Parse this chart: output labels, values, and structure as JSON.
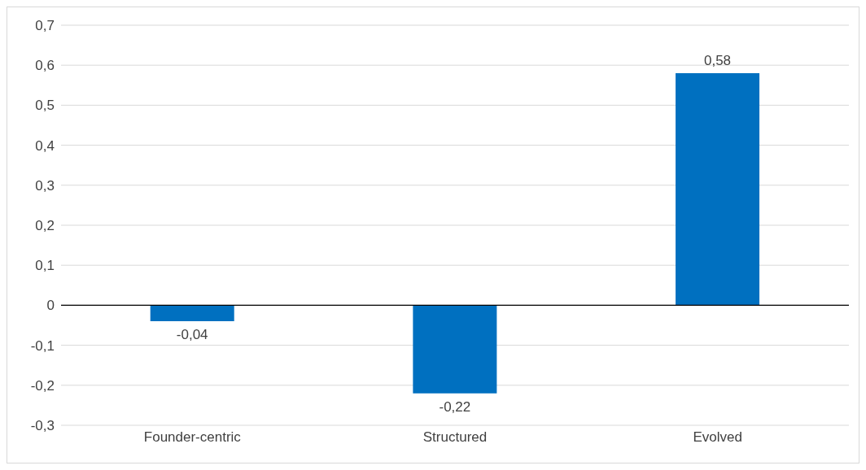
{
  "chart_data": {
    "type": "bar",
    "categories": [
      "Founder-centric",
      "Structured",
      "Evolved"
    ],
    "values": [
      -0.04,
      -0.22,
      0.58
    ],
    "value_labels": [
      "-0,04",
      "-0,22",
      "0,58"
    ],
    "color": "#0070c0",
    "ylim": [
      -0.3,
      0.7
    ],
    "yticks": [
      {
        "value": -0.3,
        "label": "-0,3"
      },
      {
        "value": -0.2,
        "label": "-0,2"
      },
      {
        "value": -0.1,
        "label": "-0,1"
      },
      {
        "value": 0,
        "label": "0"
      },
      {
        "value": 0.1,
        "label": "0,1"
      },
      {
        "value": 0.2,
        "label": "0,2"
      },
      {
        "value": 0.3,
        "label": "0,3"
      },
      {
        "value": 0.4,
        "label": "0,4"
      },
      {
        "value": 0.5,
        "label": "0,5"
      },
      {
        "value": 0.6,
        "label": "0,6"
      },
      {
        "value": 0.7,
        "label": "0,7"
      }
    ],
    "grid": "y",
    "legend": false
  }
}
